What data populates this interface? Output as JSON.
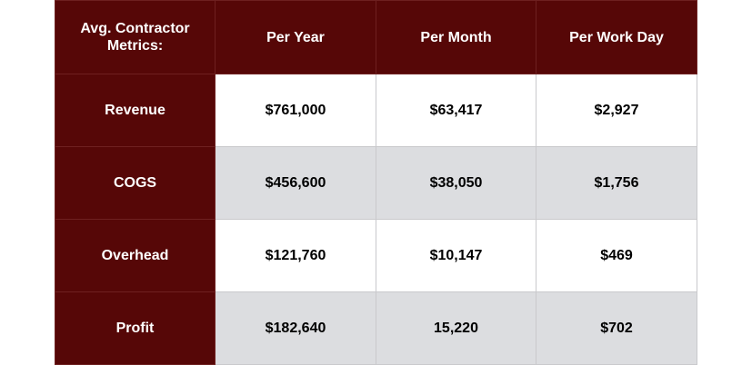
{
  "table": {
    "corner_label_line1": "Avg. Contractor",
    "corner_label_line2": "Metrics:",
    "columns": [
      "Per Year",
      "Per Month",
      "Per Work Day"
    ],
    "rows": [
      {
        "label": "Revenue",
        "values": [
          "$761,000",
          "$63,417",
          "$2,927"
        ]
      },
      {
        "label": "COGS",
        "values": [
          "$456,600",
          "$38,050",
          "$1,756"
        ]
      },
      {
        "label": "Overhead",
        "values": [
          "$121,760",
          "$10,147",
          "$469"
        ]
      },
      {
        "label": "Profit",
        "values": [
          "$182,640",
          "15,220",
          "$702"
        ]
      }
    ]
  },
  "colors": {
    "header_bg": "#560707",
    "header_text": "#ffffff",
    "row_shaded": "#dcdde0",
    "row_light": "#ffffff"
  }
}
